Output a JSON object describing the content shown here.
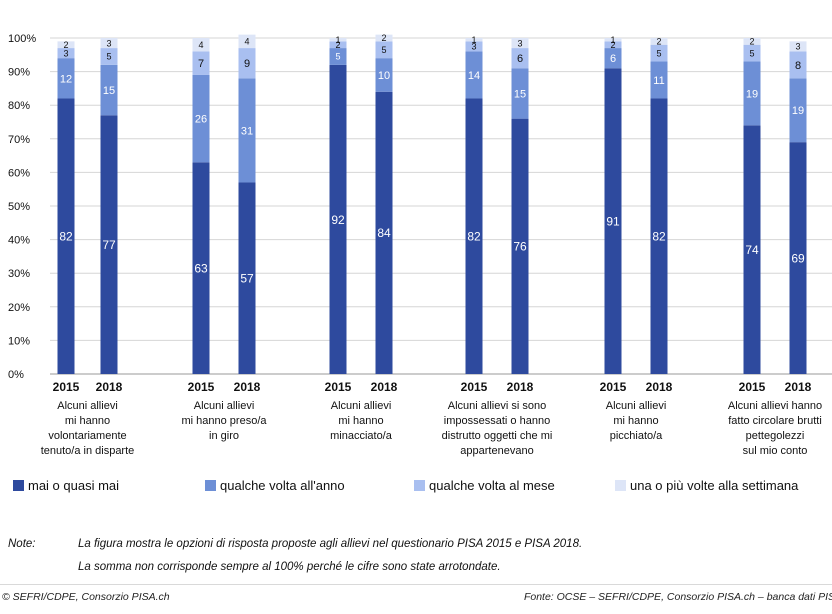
{
  "chart_data": {
    "type": "bar",
    "stacked": true,
    "ylim": [
      0,
      100
    ],
    "yticks": [
      "0%",
      "10%",
      "20%",
      "30%",
      "40%",
      "50%",
      "60%",
      "70%",
      "80%",
      "90%",
      "100%"
    ],
    "grid": true,
    "legend_position": "bottom",
    "series": [
      {
        "name": "mai o quasi mai",
        "color": "#2e4a9e"
      },
      {
        "name": "qualche volta all'anno",
        "color": "#6d8fd6"
      },
      {
        "name": "qualche volta al mese",
        "color": "#a9bff0"
      },
      {
        "name": "una o più volte alla settimana",
        "color": "#dde5f7"
      }
    ],
    "groups": [
      {
        "label": [
          "Alcuni allievi",
          "mi hanno",
          "volontariamente",
          "tenuto/a in disparte"
        ],
        "bars": [
          {
            "year": "2015",
            "values": [
              82,
              12,
              3,
              2
            ]
          },
          {
            "year": "2018",
            "values": [
              77,
              15,
              5,
              3
            ]
          }
        ]
      },
      {
        "label": [
          "Alcuni allievi",
          "mi hanno preso/a",
          "in giro"
        ],
        "bars": [
          {
            "year": "2015",
            "values": [
              63,
              26,
              7,
              4
            ]
          },
          {
            "year": "2018",
            "values": [
              57,
              31,
              9,
              4
            ]
          }
        ]
      },
      {
        "label": [
          "Alcuni allievi",
          "mi hanno",
          "minacciato/a"
        ],
        "bars": [
          {
            "year": "2015",
            "values": [
              92,
              5,
              2,
              1
            ]
          },
          {
            "year": "2018",
            "values": [
              84,
              10,
              5,
              2
            ]
          }
        ]
      },
      {
        "label": [
          "Alcuni allievi si sono",
          "impossessati o hanno",
          "distrutto oggetti che mi",
          "appartenevano"
        ],
        "bars": [
          {
            "year": "2015",
            "values": [
              82,
              14,
              3,
              1
            ]
          },
          {
            "year": "2018",
            "values": [
              76,
              15,
              6,
              3
            ]
          }
        ]
      },
      {
        "label": [
          "Alcuni allievi",
          "mi hanno",
          "picchiato/a"
        ],
        "bars": [
          {
            "year": "2015",
            "values": [
              91,
              6,
              2,
              1
            ]
          },
          {
            "year": "2018",
            "values": [
              82,
              11,
              5,
              2
            ]
          }
        ]
      },
      {
        "label": [
          "Alcuni allievi hanno",
          "fatto circolare brutti",
          "pettegolezzi",
          "sul mio conto"
        ],
        "bars": [
          {
            "year": "2015",
            "values": [
              74,
              19,
              5,
              2
            ]
          },
          {
            "year": "2018",
            "values": [
              69,
              19,
              8,
              3
            ]
          }
        ]
      }
    ]
  },
  "notes": {
    "label": "Note:",
    "line1": "La figura mostra le opzioni di risposta proposte agli allievi nel questionario PISA 2015 e PISA 2018.",
    "line2": "La somma non corrisponde sempre al 100% perché le cifre sono state arrotondate."
  },
  "footer": {
    "left": "© SEFRI/CDPE, Consorzio PISA.ch",
    "right": "Fonte: OCSE – SEFRI/CDPE, Consorzio PISA.ch – banca dati PISA"
  }
}
